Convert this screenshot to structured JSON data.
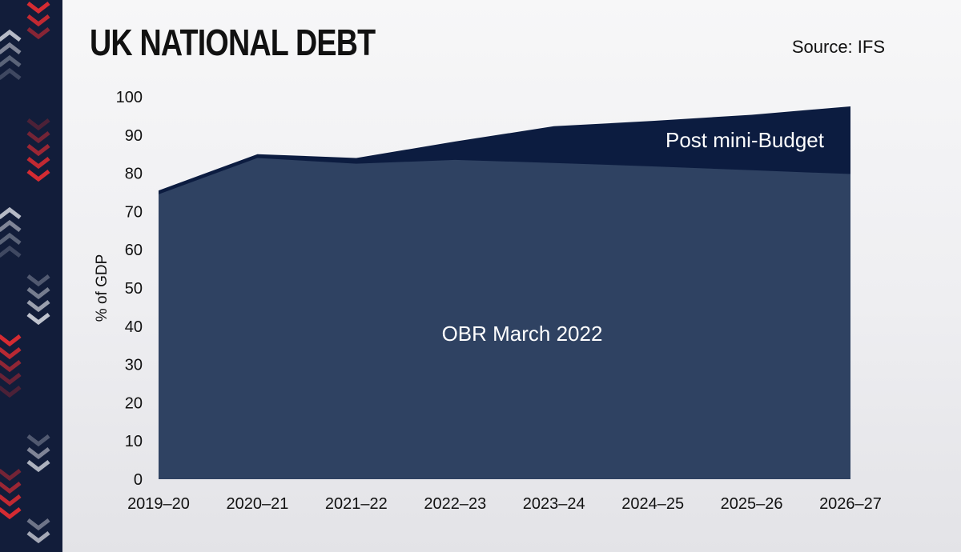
{
  "header": {
    "title": "UK NATIONAL DEBT",
    "source": "Source: IFS"
  },
  "colors": {
    "obr_area": "#2f4262",
    "post_budget_area": "#0c1c40",
    "sidebar_background": "#121d3a",
    "chevron_red": "#d52b32",
    "chevron_light": "#c9ccd6"
  },
  "chart_data": {
    "type": "area",
    "title": "UK NATIONAL DEBT",
    "ylabel": "% of GDP",
    "xlabel": "",
    "categories": [
      "2019–20",
      "2020–21",
      "2021–22",
      "2022–23",
      "2023–24",
      "2024–25",
      "2025–26",
      "2026–27"
    ],
    "ylim": [
      0,
      100
    ],
    "yticks": [
      "0",
      "10",
      "20",
      "30",
      "40",
      "50",
      "60",
      "70",
      "80",
      "90",
      "100"
    ],
    "series": [
      {
        "name": "OBR March 2022",
        "values": [
          74.5,
          84,
          82.5,
          83.5,
          82.7,
          81.8,
          80.8,
          79.8
        ]
      },
      {
        "name": "Post mini-Budget",
        "values": [
          75.5,
          85,
          84,
          88.3,
          92.3,
          93.7,
          95.3,
          97.5
        ]
      }
    ],
    "grid": false
  }
}
